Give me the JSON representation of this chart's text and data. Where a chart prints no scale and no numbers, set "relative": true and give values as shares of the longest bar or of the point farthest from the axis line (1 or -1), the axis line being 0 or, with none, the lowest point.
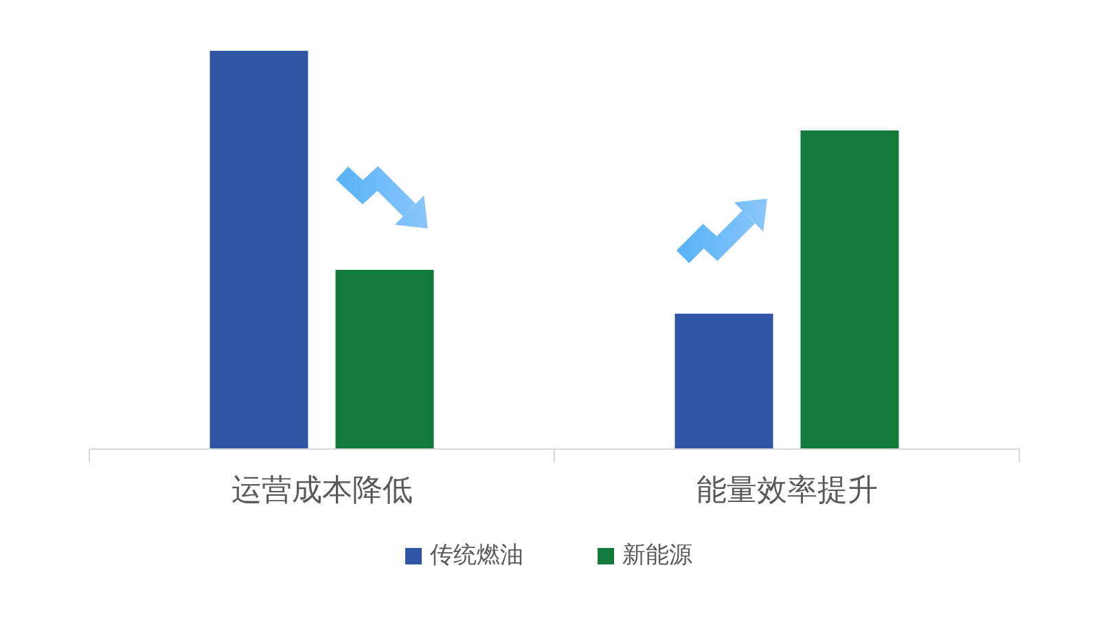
{
  "chart_data": {
    "type": "bar",
    "relative": true,
    "categories": [
      "运营成本降低",
      "能量效率提升"
    ],
    "series": [
      {
        "name": "传统燃油",
        "color": "#2f55a4",
        "values": [
          1,
          0.34
        ]
      },
      {
        "name": "新能源",
        "color": "#127b3c",
        "values": [
          0.45,
          0.8
        ]
      }
    ],
    "legend": "bottom"
  }
}
